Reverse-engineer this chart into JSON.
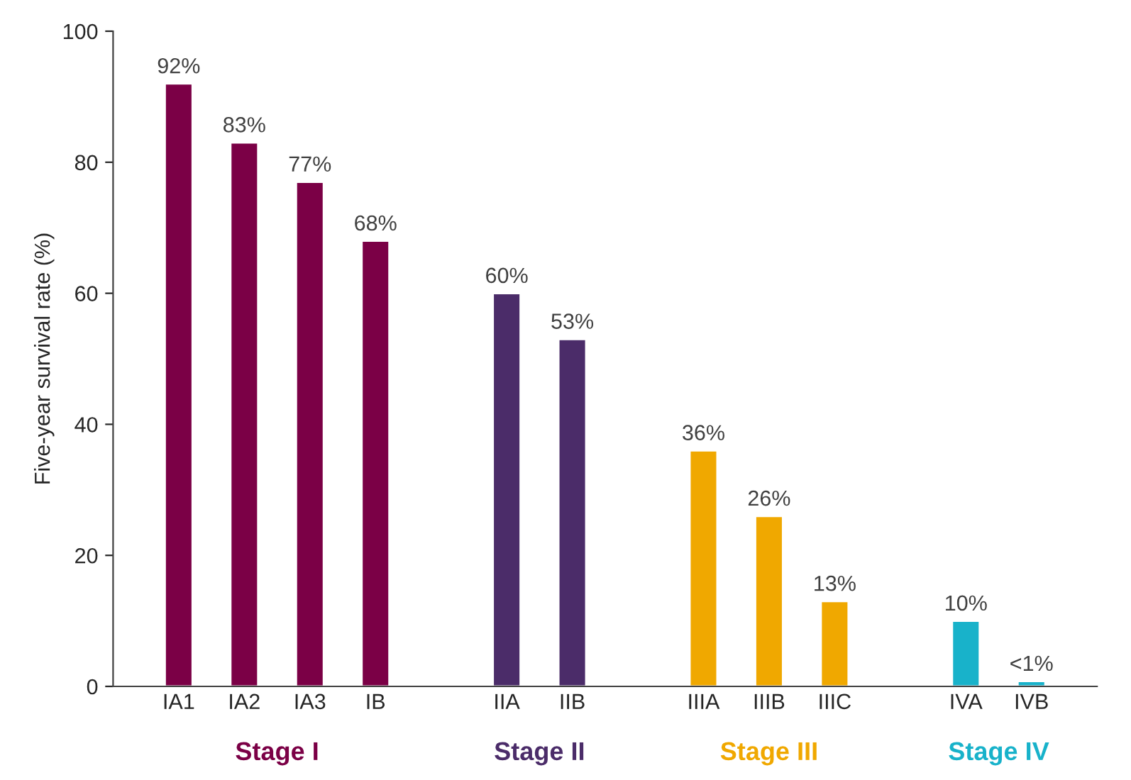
{
  "chart_data": {
    "type": "bar",
    "ylabel": "Five-year survival rate (%)",
    "categories": [
      "IA1",
      "IA2",
      "IA3",
      "IB",
      null,
      "IIA",
      "IIB",
      null,
      "IIIA",
      "IIIB",
      "IIIC",
      null,
      "IVA",
      "IVB"
    ],
    "series": [
      {
        "name": "Stage I",
        "color": "#7b0046",
        "values": [
          92,
          83,
          77,
          68,
          null,
          null,
          null,
          null,
          null,
          null,
          null,
          null,
          null,
          null
        ],
        "value_labels": [
          "92%",
          "83%",
          "77%",
          "68%",
          null,
          null,
          null,
          null,
          null,
          null,
          null,
          null,
          null,
          null
        ]
      },
      {
        "name": "Stage II",
        "color": "#4b2c69",
        "values": [
          null,
          null,
          null,
          null,
          null,
          60,
          53,
          null,
          null,
          null,
          null,
          null,
          null,
          null
        ],
        "value_labels": [
          null,
          null,
          null,
          null,
          null,
          "60%",
          "53%",
          null,
          null,
          null,
          null,
          null,
          null,
          null
        ]
      },
      {
        "name": "Stage III",
        "color": "#f0a800",
        "values": [
          null,
          null,
          null,
          null,
          null,
          null,
          null,
          null,
          36,
          26,
          13,
          null,
          null,
          null
        ],
        "value_labels": [
          null,
          null,
          null,
          null,
          null,
          null,
          null,
          null,
          "36%",
          "26%",
          "13%",
          null,
          null,
          null
        ]
      },
      {
        "name": "Stage IV",
        "color": "#18b2ca",
        "values": [
          null,
          null,
          null,
          null,
          null,
          null,
          null,
          null,
          null,
          null,
          null,
          null,
          10,
          0.8
        ],
        "value_labels": [
          null,
          null,
          null,
          null,
          null,
          null,
          null,
          null,
          null,
          null,
          null,
          null,
          "10%",
          "<1%"
        ]
      }
    ],
    "ylim": [
      0,
      100
    ],
    "yticks": [
      0,
      20,
      40,
      60,
      80,
      100
    ],
    "grid": false,
    "legend": false
  }
}
